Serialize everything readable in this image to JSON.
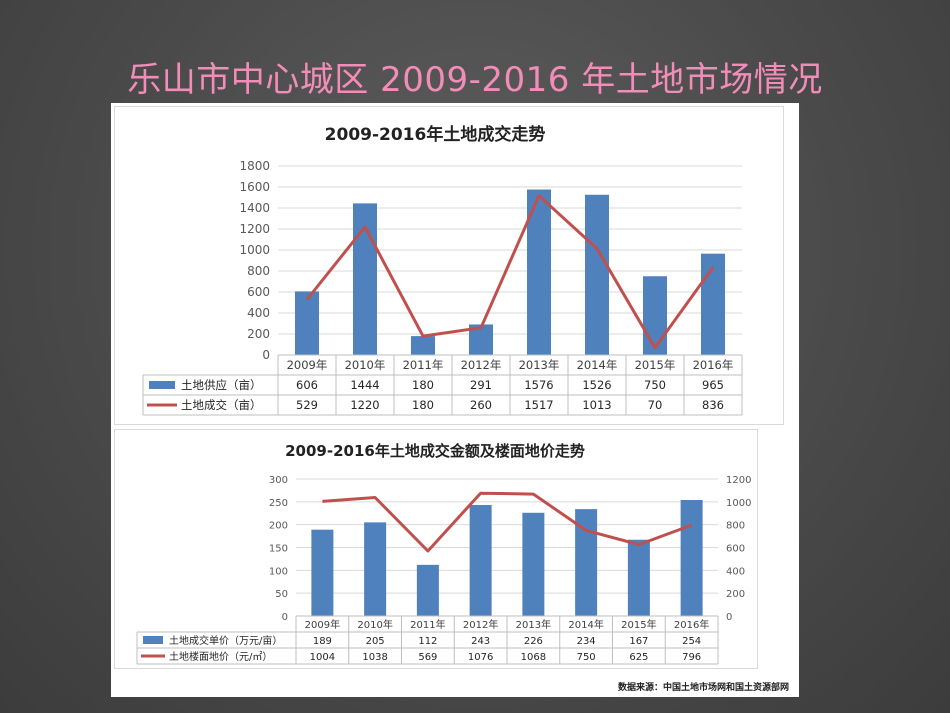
{
  "slide": {
    "title": "乐山市中心城区 2009-2016 年土地市场情况"
  },
  "source_note": "数据来源：中国土地市场网和国土资源部网",
  "colors": {
    "bar": "#4f81bd",
    "line": "#c0504d",
    "title": "#f28cb8"
  },
  "chart_data": [
    {
      "type": "bar",
      "title": "2009-2016年土地成交走势",
      "categories": [
        "2009年",
        "2010年",
        "2011年",
        "2012年",
        "2013年",
        "2014年",
        "2015年",
        "2016年"
      ],
      "ylim": [
        0,
        1800
      ],
      "yticks": [
        0,
        200,
        400,
        600,
        800,
        1000,
        1200,
        1400,
        1600,
        1800
      ],
      "grid": true,
      "legend": "data-table",
      "series": [
        {
          "name": "土地供应（亩）",
          "kind": "bar",
          "axis": "left",
          "values": [
            606,
            1444,
            180,
            291,
            1576,
            1526,
            750,
            965
          ]
        },
        {
          "name": "土地成交（亩）",
          "kind": "line",
          "axis": "left",
          "values": [
            529,
            1220,
            180,
            260,
            1517,
            1013,
            70,
            836
          ]
        }
      ]
    },
    {
      "type": "bar",
      "title": "2009-2016年土地成交金额及楼面地价走势",
      "categories": [
        "2009年",
        "2010年",
        "2011年",
        "2012年",
        "2013年",
        "2014年",
        "2015年",
        "2016年"
      ],
      "ylim": [
        0,
        300
      ],
      "yticks": [
        0,
        50,
        100,
        150,
        200,
        250,
        300
      ],
      "y2lim": [
        0,
        1200
      ],
      "y2ticks": [
        0,
        200,
        400,
        600,
        800,
        1000,
        1200
      ],
      "grid": true,
      "legend": "data-table",
      "series": [
        {
          "name": "土地成交单价（万元/亩）",
          "kind": "bar",
          "axis": "left",
          "values": [
            189,
            205,
            112,
            243,
            226,
            234,
            167,
            254
          ]
        },
        {
          "name": "土地楼面地价（元/㎡）",
          "kind": "line",
          "axis": "right",
          "values": [
            1004,
            1038,
            569,
            1076,
            1068,
            750,
            625,
            796
          ]
        }
      ]
    }
  ]
}
